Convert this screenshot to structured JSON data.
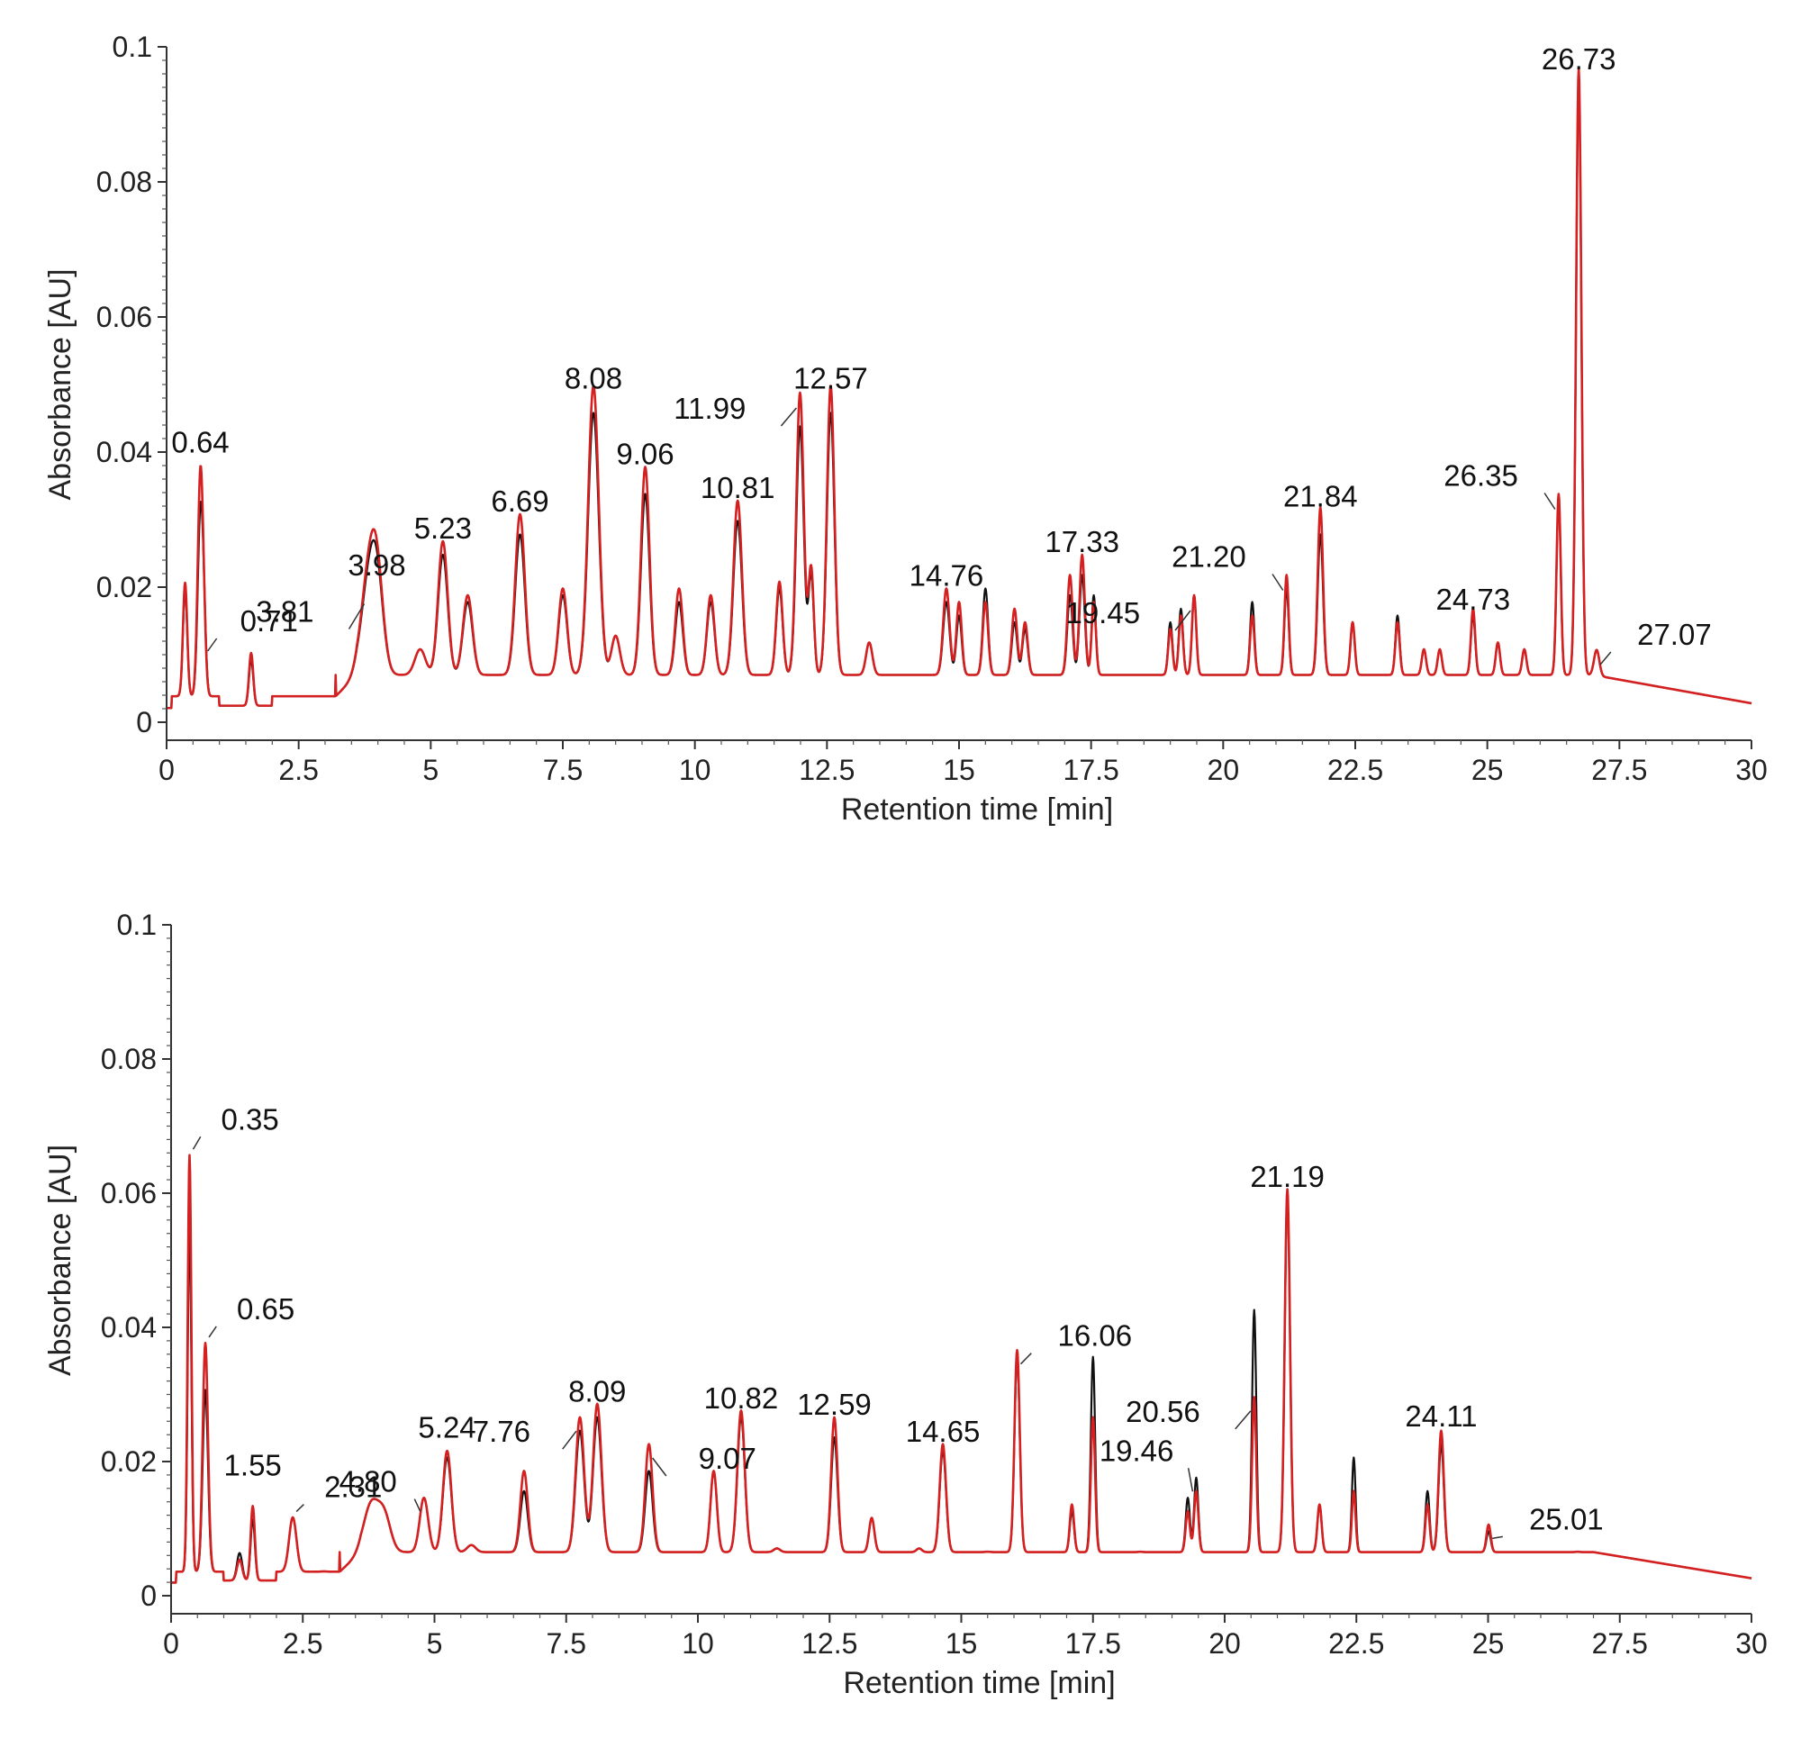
{
  "chart_data": [
    {
      "type": "line",
      "xlabel": "Retention time [min]",
      "ylabel": "Absorbance [AU]",
      "xlim": [
        0,
        30
      ],
      "ylim": [
        0,
        0.1
      ],
      "x_ticks": [
        "0",
        "2.5",
        "5",
        "7.5",
        "10",
        "12.5",
        "15",
        "17.5",
        "20",
        "22.5",
        "25",
        "27.5",
        "30"
      ],
      "y_ticks": [
        "0",
        "0.02",
        "0.04",
        "0.06",
        "0.08",
        "0.1"
      ],
      "baseline": 0.007,
      "series_colors": [
        "#d42020",
        "#111111"
      ],
      "peaks": [
        {
          "x": 0.35,
          "red": 0.021,
          "black": 0.02,
          "w": 0.04
        },
        {
          "x": 0.64,
          "red": 0.037,
          "black": 0.031,
          "w": 0.05
        },
        {
          "x": 0.71,
          "red": 0.01,
          "black": 0.012,
          "w": 0.04
        },
        {
          "x": 1.6,
          "red": 0.012,
          "black": 0.011,
          "w": 0.04
        },
        {
          "x": 3.81,
          "red": 0.017,
          "black": 0.016,
          "w": 0.14
        },
        {
          "x": 3.98,
          "red": 0.018,
          "black": 0.017,
          "w": 0.12
        },
        {
          "x": 4.8,
          "red": 0.008,
          "black": 0.008,
          "w": 0.1
        },
        {
          "x": 5.23,
          "red": 0.024,
          "black": 0.022,
          "w": 0.09
        },
        {
          "x": 5.7,
          "red": 0.016,
          "black": 0.015,
          "w": 0.09
        },
        {
          "x": 6.69,
          "red": 0.028,
          "black": 0.025,
          "w": 0.09
        },
        {
          "x": 7.5,
          "red": 0.017,
          "black": 0.016,
          "w": 0.08
        },
        {
          "x": 8.08,
          "red": 0.047,
          "black": 0.043,
          "w": 0.1
        },
        {
          "x": 8.5,
          "red": 0.01,
          "black": 0.01,
          "w": 0.08
        },
        {
          "x": 9.06,
          "red": 0.035,
          "black": 0.031,
          "w": 0.08
        },
        {
          "x": 9.7,
          "red": 0.017,
          "black": 0.015,
          "w": 0.07
        },
        {
          "x": 10.3,
          "red": 0.016,
          "black": 0.015,
          "w": 0.07
        },
        {
          "x": 10.81,
          "red": 0.03,
          "black": 0.027,
          "w": 0.08
        },
        {
          "x": 11.6,
          "red": 0.018,
          "black": 0.017,
          "w": 0.06
        },
        {
          "x": 11.99,
          "red": 0.046,
          "black": 0.041,
          "w": 0.07
        },
        {
          "x": 12.2,
          "red": 0.02,
          "black": 0.019,
          "w": 0.05
        },
        {
          "x": 12.57,
          "red": 0.047,
          "black": 0.043,
          "w": 0.07
        },
        {
          "x": 13.3,
          "red": 0.009,
          "black": 0.009,
          "w": 0.06
        },
        {
          "x": 14.76,
          "red": 0.017,
          "black": 0.015,
          "w": 0.06
        },
        {
          "x": 15.0,
          "red": 0.015,
          "black": 0.013,
          "w": 0.05
        },
        {
          "x": 15.5,
          "red": 0.015,
          "black": 0.017,
          "w": 0.05
        },
        {
          "x": 16.05,
          "red": 0.014,
          "black": 0.012,
          "w": 0.05
        },
        {
          "x": 16.25,
          "red": 0.012,
          "black": 0.011,
          "w": 0.05
        },
        {
          "x": 17.1,
          "red": 0.019,
          "black": 0.016,
          "w": 0.05
        },
        {
          "x": 17.33,
          "red": 0.022,
          "black": 0.019,
          "w": 0.05
        },
        {
          "x": 17.55,
          "red": 0.015,
          "black": 0.016,
          "w": 0.04
        },
        {
          "x": 19.0,
          "red": 0.011,
          "black": 0.012,
          "w": 0.04
        },
        {
          "x": 19.2,
          "red": 0.013,
          "black": 0.014,
          "w": 0.04
        },
        {
          "x": 19.45,
          "red": 0.016,
          "black": 0.016,
          "w": 0.04
        },
        {
          "x": 20.55,
          "red": 0.013,
          "black": 0.015,
          "w": 0.04
        },
        {
          "x": 21.2,
          "red": 0.019,
          "black": 0.017,
          "w": 0.04
        },
        {
          "x": 21.84,
          "red": 0.029,
          "black": 0.025,
          "w": 0.05
        },
        {
          "x": 22.45,
          "red": 0.012,
          "black": 0.012,
          "w": 0.04
        },
        {
          "x": 23.3,
          "red": 0.012,
          "black": 0.013,
          "w": 0.04
        },
        {
          "x": 23.8,
          "red": 0.008,
          "black": 0.008,
          "w": 0.04
        },
        {
          "x": 24.1,
          "red": 0.008,
          "black": 0.008,
          "w": 0.04
        },
        {
          "x": 24.73,
          "red": 0.014,
          "black": 0.013,
          "w": 0.04
        },
        {
          "x": 25.2,
          "red": 0.009,
          "black": 0.009,
          "w": 0.04
        },
        {
          "x": 25.7,
          "red": 0.008,
          "black": 0.008,
          "w": 0.04
        },
        {
          "x": 26.35,
          "red": 0.031,
          "black": 0.03,
          "w": 0.04
        },
        {
          "x": 26.73,
          "red": 0.094,
          "black": 0.092,
          "w": 0.05
        },
        {
          "x": 27.07,
          "red": 0.008,
          "black": 0.008,
          "w": 0.05
        }
      ],
      "annotations": [
        {
          "text": "0.64",
          "x": 0.64,
          "y": 0.037
        },
        {
          "text": "0.71",
          "x": 0.71,
          "y": 0.01
        },
        {
          "text": "3.81",
          "x": 3.81,
          "y": 0.017
        },
        {
          "text": "3.98",
          "x": 3.98,
          "y": 0.018
        },
        {
          "text": "5.23",
          "x": 5.23,
          "y": 0.024
        },
        {
          "text": "6.69",
          "x": 6.69,
          "y": 0.028
        },
        {
          "text": "8.08",
          "x": 8.08,
          "y": 0.047
        },
        {
          "text": "9.06",
          "x": 9.06,
          "y": 0.035
        },
        {
          "text": "10.81",
          "x": 10.81,
          "y": 0.03
        },
        {
          "text": "11.99",
          "x": 11.99,
          "y": 0.046
        },
        {
          "text": "12.57",
          "x": 12.57,
          "y": 0.047
        },
        {
          "text": "14.76",
          "x": 14.76,
          "y": 0.017
        },
        {
          "text": "17.33",
          "x": 17.33,
          "y": 0.022
        },
        {
          "text": "19.45",
          "x": 19.45,
          "y": 0.016
        },
        {
          "text": "21.20",
          "x": 21.2,
          "y": 0.019
        },
        {
          "text": "21.84",
          "x": 21.84,
          "y": 0.029
        },
        {
          "text": "24.73",
          "x": 24.73,
          "y": 0.014
        },
        {
          "text": "26.35",
          "x": 26.35,
          "y": 0.031
        },
        {
          "text": "26.73",
          "x": 26.73,
          "y": 0.094
        },
        {
          "text": "27.07",
          "x": 27.07,
          "y": 0.008
        }
      ]
    },
    {
      "type": "line",
      "xlabel": "Retention time [min]",
      "ylabel": "Absorbance [AU]",
      "xlim": [
        0,
        30
      ],
      "ylim": [
        0,
        0.1
      ],
      "x_ticks": [
        "0",
        "2.5",
        "5",
        "7.5",
        "10",
        "12.5",
        "15",
        "17.5",
        "20",
        "22.5",
        "25",
        "27.5",
        "30"
      ],
      "y_ticks": [
        "0",
        "0.02",
        "0.04",
        "0.06",
        "0.08",
        "0.1"
      ],
      "baseline": 0.0065,
      "series_colors": [
        "#d42020",
        "#111111"
      ],
      "peaks": [
        {
          "x": 0.35,
          "red": 0.066,
          "black": 0.055,
          "w": 0.035
        },
        {
          "x": 0.65,
          "red": 0.038,
          "black": 0.031,
          "w": 0.05
        },
        {
          "x": 1.3,
          "red": 0.007,
          "black": 0.008,
          "w": 0.05
        },
        {
          "x": 1.55,
          "red": 0.015,
          "black": 0.013,
          "w": 0.04
        },
        {
          "x": 2.31,
          "red": 0.012,
          "black": 0.012,
          "w": 0.07
        },
        {
          "x": 2.9,
          "red": 0.004,
          "black": 0.004,
          "w": 0.06
        },
        {
          "x": 3.8,
          "red": 0.011,
          "black": 0.011,
          "w": 0.14
        },
        {
          "x": 4.05,
          "red": 0.009,
          "black": 0.009,
          "w": 0.12
        },
        {
          "x": 4.8,
          "red": 0.012,
          "black": 0.012,
          "w": 0.08
        },
        {
          "x": 5.24,
          "red": 0.019,
          "black": 0.018,
          "w": 0.08
        },
        {
          "x": 5.7,
          "red": 0.006,
          "black": 0.006,
          "w": 0.08
        },
        {
          "x": 6.7,
          "red": 0.016,
          "black": 0.013,
          "w": 0.07
        },
        {
          "x": 7.76,
          "red": 0.024,
          "black": 0.022,
          "w": 0.08
        },
        {
          "x": 8.09,
          "red": 0.026,
          "black": 0.024,
          "w": 0.08
        },
        {
          "x": 9.07,
          "red": 0.02,
          "black": 0.016,
          "w": 0.07
        },
        {
          "x": 10.3,
          "red": 0.016,
          "black": 0.016,
          "w": 0.06
        },
        {
          "x": 10.82,
          "red": 0.025,
          "black": 0.024,
          "w": 0.07
        },
        {
          "x": 11.5,
          "red": 0.005,
          "black": 0.005,
          "w": 0.06
        },
        {
          "x": 12.59,
          "red": 0.024,
          "black": 0.021,
          "w": 0.06
        },
        {
          "x": 13.3,
          "red": 0.009,
          "black": 0.009,
          "w": 0.05
        },
        {
          "x": 14.2,
          "red": 0.005,
          "black": 0.005,
          "w": 0.05
        },
        {
          "x": 14.65,
          "red": 0.02,
          "black": 0.019,
          "w": 0.06
        },
        {
          "x": 15.5,
          "red": 0.004,
          "black": 0.004,
          "w": 0.05
        },
        {
          "x": 16.06,
          "red": 0.034,
          "black": 0.033,
          "w": 0.05
        },
        {
          "x": 17.1,
          "red": 0.011,
          "black": 0.01,
          "w": 0.04
        },
        {
          "x": 17.5,
          "red": 0.024,
          "black": 0.033,
          "w": 0.04
        },
        {
          "x": 18.4,
          "red": 0.004,
          "black": 0.004,
          "w": 0.04
        },
        {
          "x": 19.3,
          "red": 0.01,
          "black": 0.012,
          "w": 0.04
        },
        {
          "x": 19.46,
          "red": 0.013,
          "black": 0.015,
          "w": 0.04
        },
        {
          "x": 20.56,
          "red": 0.027,
          "black": 0.04,
          "w": 0.04
        },
        {
          "x": 21.19,
          "red": 0.058,
          "black": 0.057,
          "w": 0.05
        },
        {
          "x": 21.8,
          "red": 0.011,
          "black": 0.011,
          "w": 0.04
        },
        {
          "x": 22.45,
          "red": 0.013,
          "black": 0.018,
          "w": 0.035
        },
        {
          "x": 23.85,
          "red": 0.011,
          "black": 0.013,
          "w": 0.04
        },
        {
          "x": 24.11,
          "red": 0.022,
          "black": 0.02,
          "w": 0.05
        },
        {
          "x": 25.01,
          "red": 0.008,
          "black": 0.007,
          "w": 0.04
        },
        {
          "x": 26.7,
          "red": 0.004,
          "black": 0.004,
          "w": 0.04
        }
      ],
      "annotations": [
        {
          "text": "0.35",
          "x": 0.35,
          "y": 0.066
        },
        {
          "text": "0.65",
          "x": 0.65,
          "y": 0.038
        },
        {
          "text": "1.55",
          "x": 1.55,
          "y": 0.015
        },
        {
          "text": "2.31",
          "x": 2.31,
          "y": 0.012
        },
        {
          "text": "4.80",
          "x": 4.8,
          "y": 0.012
        },
        {
          "text": "5.24",
          "x": 5.24,
          "y": 0.019
        },
        {
          "text": "7.76",
          "x": 7.76,
          "y": 0.024
        },
        {
          "text": "8.09",
          "x": 8.09,
          "y": 0.026
        },
        {
          "text": "9.07",
          "x": 9.07,
          "y": 0.02
        },
        {
          "text": "10.82",
          "x": 10.82,
          "y": 0.025
        },
        {
          "text": "12.59",
          "x": 12.59,
          "y": 0.024
        },
        {
          "text": "14.65",
          "x": 14.65,
          "y": 0.02
        },
        {
          "text": "16.06",
          "x": 16.06,
          "y": 0.034
        },
        {
          "text": "19.46",
          "x": 19.46,
          "y": 0.015
        },
        {
          "text": "20.56",
          "x": 20.56,
          "y": 0.027
        },
        {
          "text": "21.19",
          "x": 21.19,
          "y": 0.058
        },
        {
          "text": "24.11",
          "x": 24.11,
          "y": 0.022
        },
        {
          "text": "25.01",
          "x": 25.01,
          "y": 0.008
        }
      ]
    }
  ]
}
